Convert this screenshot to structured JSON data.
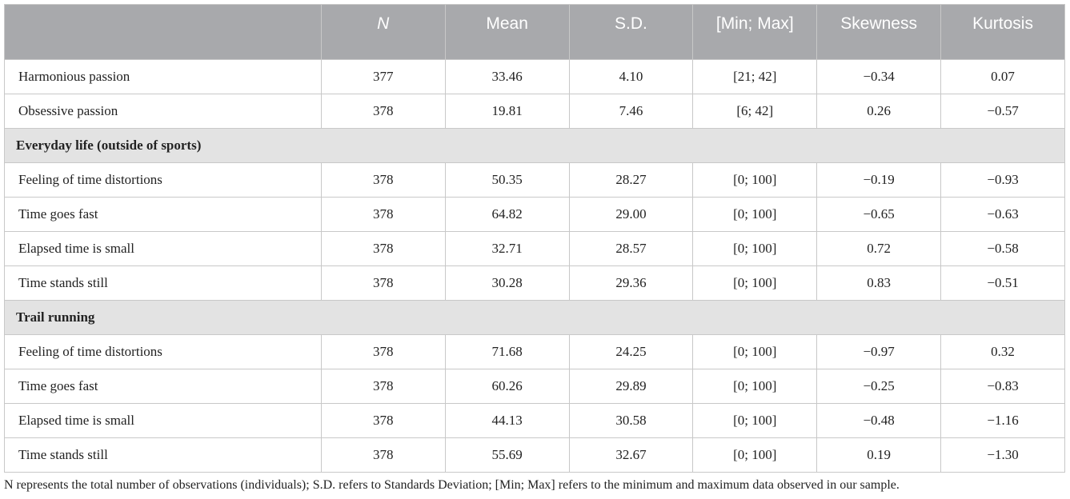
{
  "table": {
    "columns": [
      "",
      "N",
      "Mean",
      "S.D.",
      "[Min; Max]",
      "Skewness",
      "Kurtosis"
    ],
    "rows": [
      {
        "label": "Harmonious passion",
        "n": "377",
        "mean": "33.46",
        "sd": "4.10",
        "minmax": "[21; 42]",
        "skewness": "−0.34",
        "kurtosis": "0.07"
      },
      {
        "label": "Obsessive passion",
        "n": "378",
        "mean": "19.81",
        "sd": "7.46",
        "minmax": "[6; 42]",
        "skewness": "0.26",
        "kurtosis": "−0.57"
      }
    ],
    "sections": [
      {
        "title": "Everyday life (outside of sports)",
        "rows": [
          {
            "label": "Feeling of time distortions",
            "n": "378",
            "mean": "50.35",
            "sd": "28.27",
            "minmax": "[0; 100]",
            "skewness": "−0.19",
            "kurtosis": "−0.93"
          },
          {
            "label": "Time goes fast",
            "n": "378",
            "mean": "64.82",
            "sd": "29.00",
            "minmax": "[0; 100]",
            "skewness": "−0.65",
            "kurtosis": "−0.63"
          },
          {
            "label": "Elapsed time is small",
            "n": "378",
            "mean": "32.71",
            "sd": "28.57",
            "minmax": "[0; 100]",
            "skewness": "0.72",
            "kurtosis": "−0.58"
          },
          {
            "label": "Time stands still",
            "n": "378",
            "mean": "30.28",
            "sd": "29.36",
            "minmax": "[0; 100]",
            "skewness": "0.83",
            "kurtosis": "−0.51"
          }
        ]
      },
      {
        "title": "Trail running",
        "rows": [
          {
            "label": "Feeling of time distortions",
            "n": "378",
            "mean": "71.68",
            "sd": "24.25",
            "minmax": "[0; 100]",
            "skewness": "−0.97",
            "kurtosis": "0.32"
          },
          {
            "label": "Time goes fast",
            "n": "378",
            "mean": "60.26",
            "sd": "29.89",
            "minmax": "[0; 100]",
            "skewness": "−0.25",
            "kurtosis": "−0.83"
          },
          {
            "label": "Elapsed time is small",
            "n": "378",
            "mean": "44.13",
            "sd": "30.58",
            "minmax": "[0; 100]",
            "skewness": "−0.48",
            "kurtosis": "−1.16"
          },
          {
            "label": "Time stands still",
            "n": "378",
            "mean": "55.69",
            "sd": "32.67",
            "minmax": "[0; 100]",
            "skewness": "0.19",
            "kurtosis": "−1.30"
          }
        ]
      }
    ]
  },
  "footnote": "N represents the total number of observations (individuals); S.D. refers to Standards Deviation; [Min; Max] refers to the minimum and maximum data observed in our sample.",
  "colors": {
    "header_bg": "#a8a9ac",
    "section_bg": "#e3e3e3",
    "border": "#c8c8c8"
  }
}
